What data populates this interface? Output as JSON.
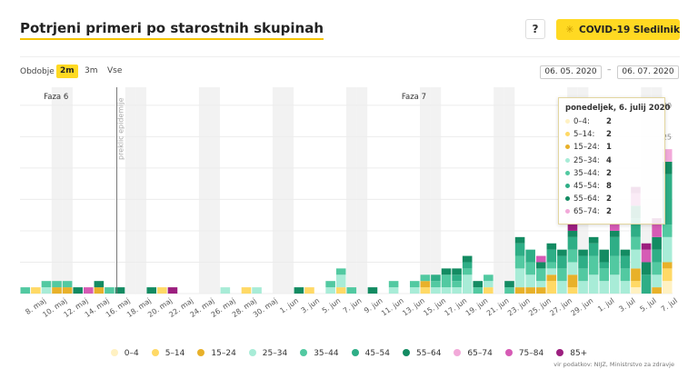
{
  "header": {
    "title": "Potrjeni primeri po starostnih skupinah",
    "help_label": "?",
    "brand_label": "COVID-19 Sledilnik",
    "brand_icon": "virus-icon"
  },
  "controls": {
    "period_label": "Obdobje",
    "periods": [
      "2m",
      "3m",
      "Vse"
    ],
    "active_period": "2m",
    "date_from": "06. 05. 2020",
    "date_separator": "–",
    "date_to": "06. 07. 2020"
  },
  "tooltip": {
    "title": "ponedeljek, 6. julij 2020",
    "rows": [
      {
        "label": "0–4:",
        "value": "2",
        "color": "#fff1c2"
      },
      {
        "label": "5–14:",
        "value": "2",
        "color": "#ffd966"
      },
      {
        "label": "15–24:",
        "value": "1",
        "color": "#e8b12a"
      },
      {
        "label": "25–34:",
        "value": "4",
        "color": "#a8ecd7"
      },
      {
        "label": "35–44:",
        "value": "2",
        "color": "#52c9a1"
      },
      {
        "label": "45–54:",
        "value": "8",
        "color": "#2eae86"
      },
      {
        "label": "55–64:",
        "value": "2",
        "color": "#138b62"
      },
      {
        "label": "65–74:",
        "value": "2",
        "color": "#f2a9d9"
      }
    ]
  },
  "legend": [
    {
      "label": "0–4",
      "color": "#fff1c2"
    },
    {
      "label": "5–14",
      "color": "#ffd966"
    },
    {
      "label": "15–24",
      "color": "#e8b12a"
    },
    {
      "label": "25–34",
      "color": "#a8ecd7"
    },
    {
      "label": "35–44",
      "color": "#52c9a1"
    },
    {
      "label": "45–54",
      "color": "#2eae86"
    },
    {
      "label": "55–64",
      "color": "#138b62"
    },
    {
      "label": "65–74",
      "color": "#f2a9d9"
    },
    {
      "label": "75–84",
      "color": "#d65bb5"
    },
    {
      "label": "85+",
      "color": "#9c1f7f"
    }
  ],
  "source": "vir podatkov: NIJZ, Ministrstvo za zdravje",
  "chart_data": {
    "type": "bar",
    "stacked": true,
    "ylim": [
      0,
      32
    ],
    "yticks": [
      0,
      5,
      10,
      15,
      20,
      25,
      30
    ],
    "annotations": [
      {
        "label": "Faza 6",
        "x_index": 2
      },
      {
        "label": "Faza 7",
        "x_index": 36
      },
      {
        "label": "preklic epidemije",
        "x_index": 9
      }
    ],
    "x_tick_labels": [
      "8. maj",
      "10. maj",
      "12. maj",
      "14. maj",
      "16. maj",
      "18. maj",
      "20. maj",
      "22. maj",
      "24. maj",
      "26. maj",
      "28. maj",
      "30. maj",
      "1. jun",
      "3. jun",
      "5. jun",
      "7. jun",
      "9. jun",
      "11. jun",
      "13. jun",
      "15. jun",
      "17. jun",
      "19. jun",
      "21. jun",
      "23. jun",
      "25. jun",
      "27. jun",
      "29. jun",
      "1. jul",
      "3. jul",
      "5. jul",
      "7. jul"
    ],
    "categories": [
      "6. maj",
      "7. maj",
      "8. maj",
      "9. maj",
      "10. maj",
      "11. maj",
      "12. maj",
      "13. maj",
      "14. maj",
      "15. maj",
      "16. maj",
      "17. maj",
      "18. maj",
      "19. maj",
      "20. maj",
      "21. maj",
      "22. maj",
      "23. maj",
      "24. maj",
      "25. maj",
      "26. maj",
      "27. maj",
      "28. maj",
      "29. maj",
      "30. maj",
      "31. maj",
      "1. jun",
      "2. jun",
      "3. jun",
      "4. jun",
      "5. jun",
      "6. jun",
      "7. jun",
      "8. jun",
      "9. jun",
      "10. jun",
      "11. jun",
      "12. jun",
      "13. jun",
      "14. jun",
      "15. jun",
      "16. jun",
      "17. jun",
      "18. jun",
      "19. jun",
      "20. jun",
      "21. jun",
      "22. jun",
      "23. jun",
      "24. jun",
      "25. jun",
      "26. jun",
      "27. jun",
      "28. jun",
      "29. jun",
      "30. jun",
      "1. jul",
      "2. jul",
      "3. jul",
      "4. jul",
      "5. jul",
      "6. jul"
    ],
    "series": [
      {
        "name": "0–4",
        "values": [
          0,
          0,
          0,
          0,
          0,
          0,
          0,
          0,
          0,
          0,
          0,
          0,
          0,
          0,
          0,
          0,
          0,
          0,
          0,
          0,
          0,
          0,
          0,
          0,
          0,
          0,
          0,
          0,
          0,
          0,
          0,
          0,
          0,
          0,
          0,
          0,
          0,
          0,
          0,
          0,
          0,
          0,
          0,
          0,
          0,
          0,
          0,
          0,
          0,
          0,
          0,
          0,
          0,
          0,
          0,
          0,
          0,
          0,
          1,
          0,
          0,
          2
        ]
      },
      {
        "name": "5–14",
        "values": [
          0,
          1,
          0,
          0,
          0,
          0,
          0,
          0,
          0,
          0,
          0,
          0,
          0,
          1,
          0,
          0,
          0,
          0,
          0,
          0,
          0,
          1,
          0,
          0,
          0,
          0,
          0,
          1,
          0,
          0,
          1,
          0,
          0,
          0,
          0,
          0,
          0,
          0,
          1,
          0,
          0,
          0,
          0,
          0,
          1,
          0,
          0,
          0,
          0,
          0,
          2,
          0,
          1,
          0,
          0,
          0,
          0,
          0,
          1,
          0,
          0,
          2
        ]
      },
      {
        "name": "15–24",
        "values": [
          0,
          0,
          0,
          1,
          1,
          0,
          0,
          1,
          0,
          0,
          0,
          0,
          0,
          0,
          0,
          0,
          0,
          0,
          0,
          0,
          0,
          0,
          0,
          0,
          0,
          0,
          0,
          0,
          0,
          0,
          0,
          0,
          0,
          0,
          0,
          0,
          0,
          0,
          1,
          0,
          0,
          0,
          0,
          0,
          0,
          0,
          0,
          1,
          1,
          1,
          1,
          0,
          2,
          0,
          0,
          0,
          0,
          0,
          2,
          0,
          1,
          1
        ]
      },
      {
        "name": "25–34",
        "values": [
          0,
          0,
          1,
          0,
          0,
          0,
          0,
          0,
          0,
          0,
          0,
          0,
          0,
          0,
          0,
          0,
          0,
          0,
          0,
          1,
          0,
          0,
          1,
          0,
          0,
          0,
          0,
          0,
          0,
          1,
          2,
          0,
          0,
          0,
          0,
          1,
          0,
          1,
          0,
          1,
          1,
          1,
          3,
          0,
          1,
          0,
          0,
          3,
          2,
          1,
          1,
          2,
          2,
          2,
          3,
          2,
          3,
          2,
          3,
          0,
          2,
          4
        ]
      },
      {
        "name": "35–44",
        "values": [
          1,
          0,
          1,
          1,
          1,
          0,
          0,
          0,
          1,
          0,
          0,
          0,
          0,
          0,
          0,
          0,
          0,
          0,
          0,
          0,
          0,
          0,
          0,
          0,
          0,
          0,
          0,
          0,
          0,
          1,
          1,
          1,
          0,
          0,
          0,
          1,
          0,
          1,
          1,
          1,
          2,
          1,
          1,
          1,
          1,
          0,
          1,
          2,
          2,
          2,
          1,
          2,
          2,
          2,
          3,
          2,
          3,
          2,
          2,
          0,
          2,
          2
        ]
      },
      {
        "name": "45–54",
        "values": [
          0,
          0,
          0,
          0,
          0,
          0,
          0,
          0,
          0,
          0,
          0,
          0,
          0,
          0,
          0,
          0,
          0,
          0,
          0,
          0,
          0,
          0,
          0,
          0,
          0,
          0,
          0,
          0,
          0,
          0,
          0,
          0,
          0,
          0,
          0,
          0,
          0,
          0,
          0,
          1,
          0,
          1,
          1,
          0,
          0,
          0,
          0,
          2,
          2,
          0,
          2,
          2,
          2,
          2,
          2,
          1,
          3,
          2,
          3,
          3,
          2,
          8
        ]
      },
      {
        "name": "55–64",
        "values": [
          0,
          0,
          0,
          0,
          0,
          1,
          0,
          1,
          0,
          1,
          0,
          0,
          1,
          0,
          0,
          0,
          0,
          0,
          0,
          0,
          0,
          0,
          0,
          0,
          0,
          0,
          1,
          0,
          0,
          0,
          0,
          0,
          0,
          1,
          0,
          0,
          0,
          0,
          0,
          0,
          1,
          1,
          1,
          1,
          0,
          0,
          1,
          1,
          0,
          1,
          1,
          1,
          1,
          1,
          1,
          2,
          1,
          1,
          2,
          2,
          2,
          2
        ]
      },
      {
        "name": "65–74",
        "values": [
          0,
          0,
          0,
          0,
          0,
          0,
          0,
          0,
          0,
          0,
          0,
          0,
          0,
          0,
          0,
          0,
          0,
          0,
          0,
          0,
          0,
          0,
          0,
          0,
          0,
          0,
          0,
          0,
          0,
          0,
          0,
          0,
          0,
          0,
          0,
          0,
          0,
          0,
          0,
          0,
          0,
          0,
          0,
          0,
          0,
          0,
          0,
          0,
          0,
          0,
          0,
          0,
          0,
          0,
          0,
          0,
          0,
          0,
          0,
          0,
          0,
          2
        ]
      },
      {
        "name": "75–84",
        "values": [
          0,
          0,
          0,
          0,
          0,
          0,
          1,
          0,
          0,
          0,
          0,
          0,
          0,
          0,
          0,
          0,
          0,
          0,
          0,
          0,
          0,
          0,
          0,
          0,
          0,
          0,
          0,
          0,
          0,
          0,
          0,
          0,
          0,
          0,
          0,
          0,
          0,
          0,
          0,
          0,
          0,
          0,
          0,
          0,
          0,
          0,
          0,
          0,
          0,
          1,
          0,
          0,
          0,
          0,
          0,
          0,
          1,
          0,
          2,
          2,
          2,
          0
        ]
      },
      {
        "name": "85+",
        "values": [
          0,
          0,
          0,
          0,
          0,
          0,
          0,
          0,
          0,
          0,
          0,
          0,
          0,
          0,
          1,
          0,
          0,
          0,
          0,
          0,
          0,
          0,
          0,
          0,
          0,
          0,
          0,
          0,
          0,
          0,
          0,
          0,
          0,
          0,
          0,
          0,
          0,
          0,
          0,
          0,
          0,
          0,
          0,
          0,
          0,
          0,
          0,
          0,
          0,
          0,
          0,
          0,
          1,
          0,
          0,
          0,
          0,
          0,
          1,
          1,
          1,
          0
        ]
      }
    ]
  }
}
